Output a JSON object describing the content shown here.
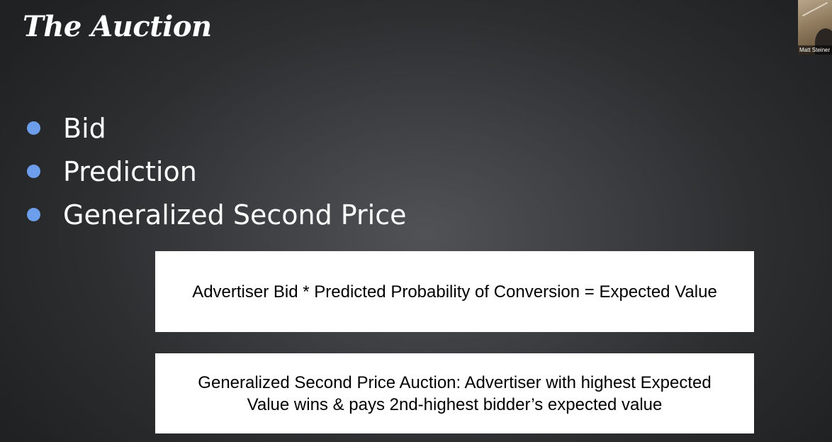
{
  "slide": {
    "title": "The Auction",
    "bullets": [
      {
        "text": "Bid"
      },
      {
        "text": "Prediction"
      },
      {
        "text": "Generalized Second Price"
      }
    ],
    "boxes": [
      {
        "text": "Advertiser Bid * Predicted Probability of Conversion = Expected Value"
      },
      {
        "text": "Generalized Second Price Auction: Advertiser with highest Expected Value wins & pays 2nd-highest bidder’s expected value"
      }
    ],
    "colors": {
      "bullet": "#6d9eeb",
      "text": "#ffffff",
      "box_background": "#ffffff"
    }
  },
  "video": {
    "participant_name": "Matt Steiner"
  }
}
